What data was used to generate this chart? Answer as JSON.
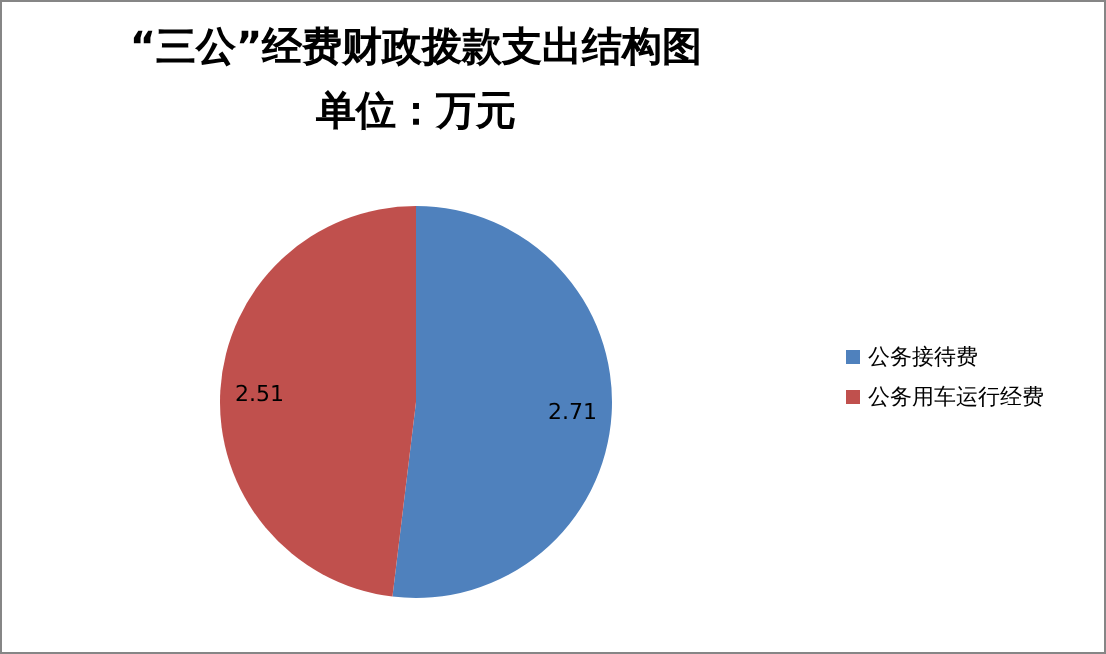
{
  "chart_data": {
    "type": "pie",
    "title": "“三公”经费财政拨款支出结构图",
    "subtitle": "单位：万元",
    "categories": [
      "公务接待费",
      "公务用车运行经费"
    ],
    "values": [
      2.71,
      2.51
    ],
    "colors": [
      "#4f81bd",
      "#c0504d"
    ],
    "data_labels": true,
    "legend": "right"
  }
}
